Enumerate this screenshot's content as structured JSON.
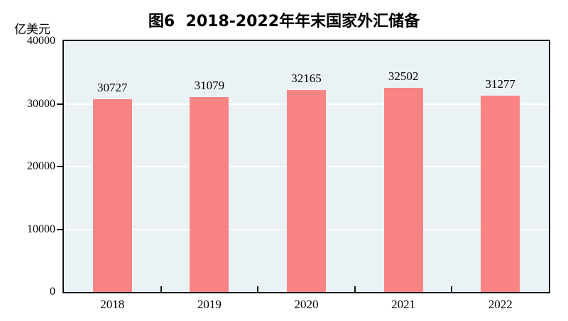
{
  "figure": {
    "title": "图6  2018-2022年年末国家外汇储备",
    "unit_label": "亿美元"
  },
  "colors": {
    "bar": "#FA8484",
    "plot_background": "#EBF2F6",
    "axis": "#111111",
    "gridline": "#FFFFFF",
    "text": "#000000"
  },
  "chart_data": {
    "type": "bar",
    "categories": [
      "2018",
      "2019",
      "2020",
      "2021",
      "2022"
    ],
    "values": [
      30727,
      31079,
      32165,
      32502,
      31277
    ],
    "data_labels": [
      "30727",
      "31079",
      "32165",
      "32502",
      "31277"
    ],
    "title": "图6  2018-2022年年末国家外汇储备",
    "xlabel": "",
    "ylabel": "亿美元",
    "ylim": [
      0,
      40000
    ],
    "yticks": [
      0,
      10000,
      20000,
      30000,
      40000
    ],
    "ytick_labels": [
      "0",
      "10000",
      "20000",
      "30000",
      "40000"
    ],
    "grid": true,
    "gridline_values": [
      10000,
      20000,
      30000
    ],
    "legend": false
  }
}
